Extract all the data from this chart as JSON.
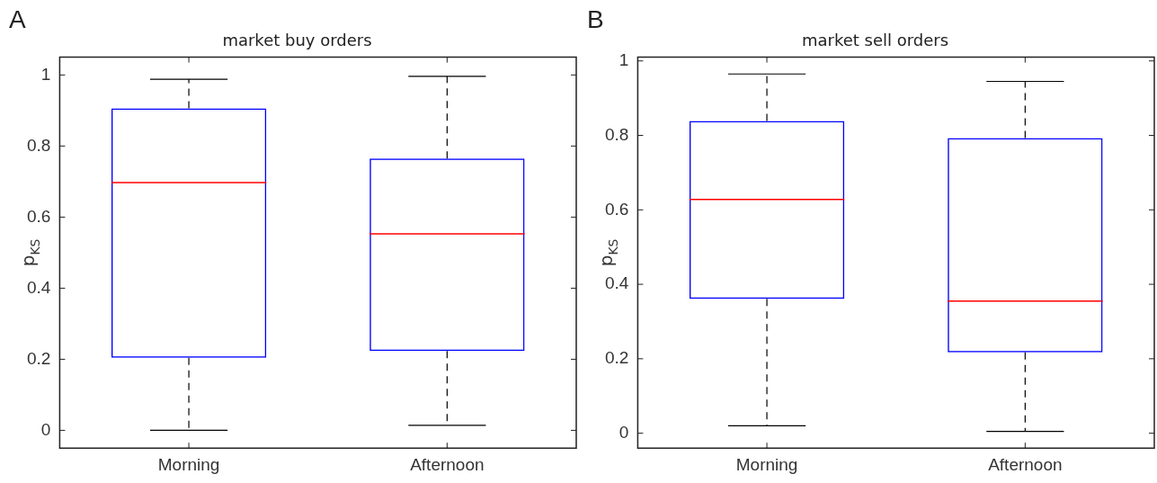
{
  "chart_data": [
    {
      "type": "box",
      "title": "market buy orders",
      "ylabel": "p$_{KS}$",
      "annotations": [
        "A"
      ],
      "categories": [
        "Morning",
        "Afternoon"
      ],
      "series": [
        {
          "color": "#0000ff",
          "boxes": [
            {
              "low": 0,
              "q1": 0.204,
              "median": 0.697,
              "q3": 0.906,
              "high": 0.988
            },
            {
              "low": 0.014,
              "q1": 0.223,
              "median": 0.553,
              "q3": 0.765,
              "high": 0.996
            }
          ]
        }
      ],
      "ylim": [
        -0.05,
        1.05
      ],
      "yticks": [
        0,
        0.2,
        0.4,
        0.6,
        0.8,
        1
      ],
      "grid": false
    },
    {
      "type": "box",
      "title": "market sell orders",
      "ylabel": "p$_{KS}$",
      "annotations": [
        "B"
      ],
      "categories": [
        "Morning",
        "Afternoon"
      ],
      "series": [
        {
          "color": "#0000ff",
          "boxes": [
            {
              "low": 0.02,
              "q1": 0.361,
              "median": 0.628,
              "q3": 0.839,
              "high": 0.965
            },
            {
              "low": 0.005,
              "q1": 0.217,
              "median": 0.355,
              "q3": 0.793,
              "high": 0.945
            }
          ]
        }
      ],
      "ylim": [
        -0.04,
        1.01
      ],
      "yticks": [
        0,
        0.2,
        0.4,
        0.6,
        0.8,
        1
      ],
      "grid": false
    }
  ]
}
